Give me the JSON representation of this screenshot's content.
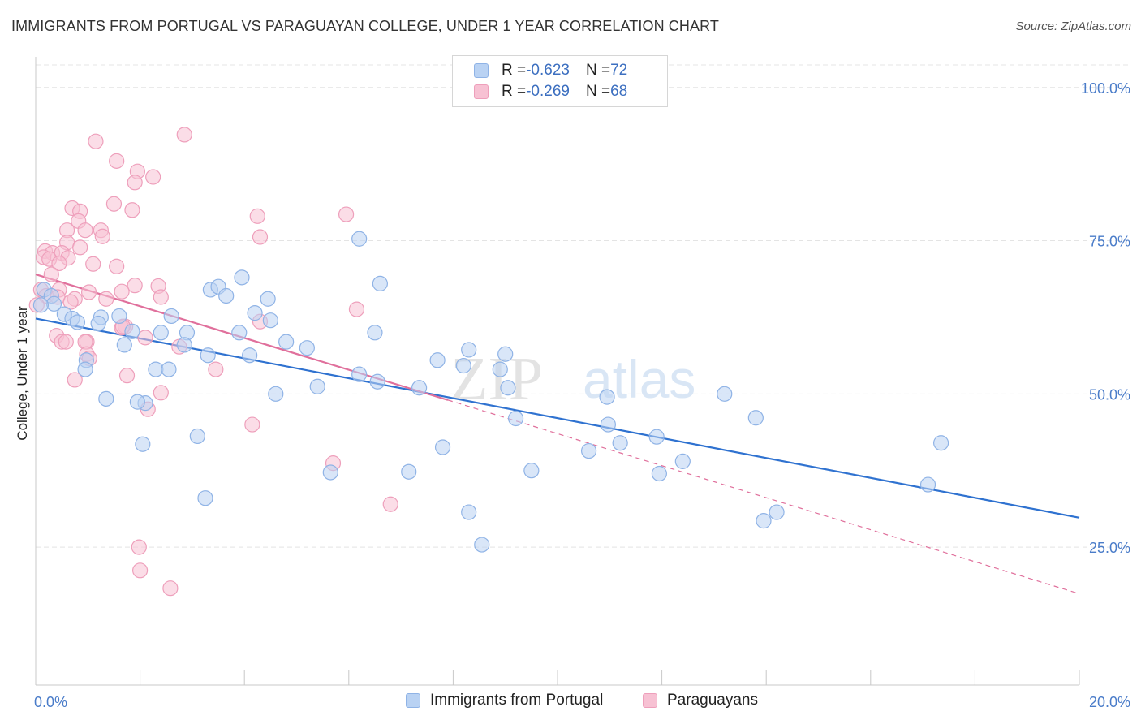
{
  "title": "IMMIGRANTS FROM PORTUGAL VS PARAGUAYAN COLLEGE, UNDER 1 YEAR CORRELATION CHART",
  "source": "Source: ZipAtlas.com",
  "watermark": {
    "zip": "ZIP",
    "atlas": "atlas"
  },
  "colors": {
    "blue": "#2f72d0",
    "blue_fill": "#b9d2f3",
    "blue_edge": "#8fb3e6",
    "pink": "#e0709c",
    "pink_fill": "#f7c1d3",
    "pink_edge": "#ee9fbb",
    "tick": "#4a7cc9",
    "grid": "#e4e4e4"
  },
  "legend_top": {
    "rows": [
      {
        "r_label": "R = ",
        "r_value": "-0.623",
        "n_label": "N = ",
        "n_value": "72"
      },
      {
        "r_label": "R = ",
        "r_value": "-0.269",
        "n_label": "N = ",
        "n_value": "68"
      }
    ]
  },
  "legend_bottom": {
    "items": [
      "Immigrants from Portugal",
      "Paraguayans"
    ]
  },
  "chart_data": {
    "type": "scatter",
    "title": "IMMIGRANTS FROM PORTUGAL VS PARAGUAYAN COLLEGE, UNDER 1 YEAR CORRELATION CHART",
    "xlabel": "",
    "ylabel": "College, Under 1 year",
    "xlim": [
      0,
      20
    ],
    "ylim": [
      2.5,
      105
    ],
    "x_tick_labels": [
      "0.0%",
      "20.0%"
    ],
    "y_ticks": [
      25,
      50,
      75,
      100
    ],
    "y_tick_labels": [
      "25.0%",
      "50.0%",
      "75.0%",
      "100.0%"
    ],
    "grid": true,
    "legend_position": "top-center",
    "series": [
      {
        "name": "Immigrants from Portugal",
        "r": -0.623,
        "n": 72,
        "trend": {
          "x": [
            0,
            20
          ],
          "y": [
            62.3,
            29.8
          ],
          "style": "solid"
        },
        "points": [
          [
            0.16,
            67.0
          ],
          [
            0.3,
            66.0
          ],
          [
            0.35,
            64.7
          ],
          [
            0.55,
            63.0
          ],
          [
            0.7,
            62.3
          ],
          [
            0.8,
            61.7
          ],
          [
            1.25,
            62.5
          ],
          [
            1.2,
            61.5
          ],
          [
            1.6,
            62.7
          ],
          [
            1.85,
            60.2
          ],
          [
            1.7,
            58.0
          ],
          [
            0.97,
            55.5
          ],
          [
            0.95,
            54.0
          ],
          [
            2.4,
            60.0
          ],
          [
            2.9,
            60.0
          ],
          [
            3.3,
            56.3
          ],
          [
            2.85,
            58.0
          ],
          [
            2.6,
            62.7
          ],
          [
            3.35,
            67.0
          ],
          [
            3.5,
            67.5
          ],
          [
            3.65,
            66.0
          ],
          [
            3.95,
            69.0
          ],
          [
            3.9,
            60.0
          ],
          [
            4.1,
            56.3
          ],
          [
            4.2,
            63.2
          ],
          [
            4.45,
            65.5
          ],
          [
            4.5,
            62.0
          ],
          [
            4.8,
            58.5
          ],
          [
            2.3,
            54.0
          ],
          [
            2.55,
            54.0
          ],
          [
            5.2,
            57.5
          ],
          [
            6.2,
            75.3
          ],
          [
            6.6,
            68.0
          ],
          [
            6.5,
            60.0
          ],
          [
            5.4,
            51.2
          ],
          [
            4.6,
            50.0
          ],
          [
            6.2,
            53.2
          ],
          [
            6.55,
            52.0
          ],
          [
            7.35,
            51.0
          ],
          [
            7.7,
            55.5
          ],
          [
            8.2,
            54.6
          ],
          [
            8.3,
            57.2
          ],
          [
            8.9,
            54.0
          ],
          [
            9.0,
            56.5
          ],
          [
            9.05,
            51.0
          ],
          [
            9.2,
            46.0
          ],
          [
            1.35,
            49.2
          ],
          [
            2.1,
            48.5
          ],
          [
            1.95,
            48.7
          ],
          [
            2.05,
            41.8
          ],
          [
            3.1,
            43.1
          ],
          [
            3.25,
            33.0
          ],
          [
            5.65,
            37.2
          ],
          [
            7.15,
            37.3
          ],
          [
            7.8,
            41.3
          ],
          [
            8.3,
            30.7
          ],
          [
            8.55,
            25.4
          ],
          [
            9.5,
            37.5
          ],
          [
            10.6,
            40.7
          ],
          [
            10.95,
            49.5
          ],
          [
            10.97,
            45.0
          ],
          [
            11.2,
            42.0
          ],
          [
            11.9,
            43.0
          ],
          [
            11.95,
            37.0
          ],
          [
            12.4,
            39.0
          ],
          [
            13.2,
            50.0
          ],
          [
            13.8,
            46.1
          ],
          [
            13.95,
            29.3
          ],
          [
            14.2,
            30.7
          ],
          [
            17.1,
            35.2
          ],
          [
            17.35,
            42.0
          ],
          [
            0.1,
            64.5
          ]
        ]
      },
      {
        "name": "Paraguayans",
        "r": -0.269,
        "n": 68,
        "trend": {
          "x": [
            0,
            7.9
          ],
          "y": [
            69.5,
            49.0
          ],
          "style": "solid",
          "dashed_x": [
            7.9,
            20
          ],
          "dashed_y": [
            49.0,
            17.4
          ]
        },
        "points": [
          [
            1.15,
            91.2
          ],
          [
            1.55,
            88.0
          ],
          [
            1.95,
            86.3
          ],
          [
            1.9,
            84.5
          ],
          [
            2.25,
            85.4
          ],
          [
            2.85,
            92.3
          ],
          [
            1.5,
            81.0
          ],
          [
            1.85,
            80.0
          ],
          [
            0.7,
            80.3
          ],
          [
            0.85,
            79.8
          ],
          [
            0.82,
            78.2
          ],
          [
            0.95,
            76.7
          ],
          [
            1.25,
            76.7
          ],
          [
            1.28,
            75.7
          ],
          [
            0.6,
            76.7
          ],
          [
            0.6,
            74.7
          ],
          [
            0.85,
            73.9
          ],
          [
            0.18,
            73.3
          ],
          [
            0.32,
            73.0
          ],
          [
            0.5,
            73.0
          ],
          [
            0.15,
            72.3
          ],
          [
            0.26,
            72.0
          ],
          [
            0.62,
            72.2
          ],
          [
            0.45,
            71.3
          ],
          [
            1.1,
            71.2
          ],
          [
            1.55,
            70.8
          ],
          [
            0.3,
            69.5
          ],
          [
            0.45,
            67.0
          ],
          [
            1.9,
            67.7
          ],
          [
            2.35,
            67.6
          ],
          [
            1.65,
            66.7
          ],
          [
            1.02,
            66.6
          ],
          [
            0.1,
            67.0
          ],
          [
            0.2,
            66.0
          ],
          [
            0.42,
            65.8
          ],
          [
            0.75,
            65.5
          ],
          [
            0.67,
            65.0
          ],
          [
            1.35,
            65.5
          ],
          [
            2.4,
            65.8
          ],
          [
            1.72,
            61.0
          ],
          [
            1.65,
            60.8
          ],
          [
            2.1,
            59.2
          ],
          [
            0.4,
            59.5
          ],
          [
            0.5,
            58.5
          ],
          [
            0.58,
            58.5
          ],
          [
            0.98,
            58.5
          ],
          [
            0.95,
            58.5
          ],
          [
            0.98,
            56.5
          ],
          [
            1.03,
            55.8
          ],
          [
            2.75,
            57.7
          ],
          [
            1.75,
            53.0
          ],
          [
            0.75,
            52.3
          ],
          [
            3.45,
            54.0
          ],
          [
            4.3,
            61.8
          ],
          [
            4.25,
            79.0
          ],
          [
            4.3,
            75.6
          ],
          [
            5.95,
            79.3
          ],
          [
            6.15,
            63.8
          ],
          [
            2.4,
            50.2
          ],
          [
            2.15,
            47.5
          ],
          [
            4.15,
            45.0
          ],
          [
            5.7,
            38.7
          ],
          [
            6.8,
            32.0
          ],
          [
            1.98,
            25.0
          ],
          [
            2.0,
            21.2
          ],
          [
            2.58,
            18.3
          ],
          [
            0.02,
            64.5
          ],
          [
            1.67,
            61.0
          ]
        ]
      }
    ]
  }
}
